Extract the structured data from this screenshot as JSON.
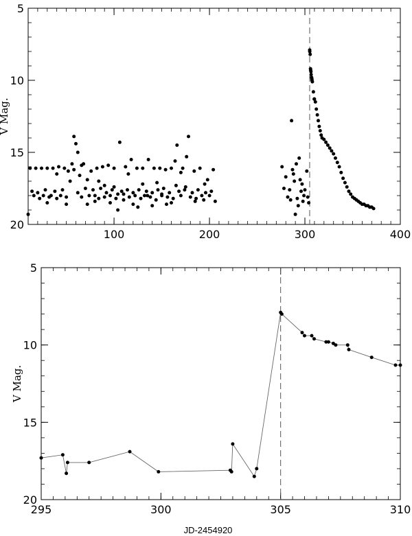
{
  "chart_data": [
    {
      "type": "scatter",
      "title": "",
      "xlabel": "",
      "ylabel": "V Mag.",
      "xlim": [
        10,
        400
      ],
      "ylim": [
        20,
        5
      ],
      "y_inverted": true,
      "x_ticks": [
        100,
        200,
        300,
        400
      ],
      "y_ticks": [
        5,
        10,
        15,
        20
      ],
      "vline": 305,
      "series": [
        {
          "points": [
            [
              10,
              19.3
            ],
            [
              12,
              16.1
            ],
            [
              14,
              17.7
            ],
            [
              16,
              18.0
            ],
            [
              18,
              16.1
            ],
            [
              20,
              17.8
            ],
            [
              22,
              18.2
            ],
            [
              24,
              16.1
            ],
            [
              26,
              18.0
            ],
            [
              28,
              17.6
            ],
            [
              30,
              16.1
            ],
            [
              32,
              18.1
            ],
            [
              34,
              18.0
            ],
            [
              36,
              16.1
            ],
            [
              38,
              17.7
            ],
            [
              40,
              18.2
            ],
            [
              42,
              16.0
            ],
            [
              44,
              18.0
            ],
            [
              46,
              17.6
            ],
            [
              48,
              16.1
            ],
            [
              50,
              18.1
            ],
            [
              52,
              16.3
            ],
            [
              54,
              17.0
            ],
            [
              56,
              15.8
            ],
            [
              58,
              16.2
            ],
            [
              60,
              14.4
            ],
            [
              62,
              17.8
            ],
            [
              64,
              16.6
            ],
            [
              66,
              18.1
            ],
            [
              68,
              15.8
            ],
            [
              70,
              17.5
            ],
            [
              72,
              16.9
            ],
            [
              74,
              18.0
            ],
            [
              76,
              16.3
            ],
            [
              78,
              17.6
            ],
            [
              80,
              18.0
            ],
            [
              82,
              16.1
            ],
            [
              84,
              18.2
            ],
            [
              86,
              17.5
            ],
            [
              88,
              16.0
            ],
            [
              90,
              18.1
            ],
            [
              92,
              17.8
            ],
            [
              94,
              15.9
            ],
            [
              96,
              18.0
            ],
            [
              98,
              17.6
            ],
            [
              100,
              16.1
            ],
            [
              102,
              18.2
            ],
            [
              104,
              17.9
            ],
            [
              106,
              14.3
            ],
            [
              108,
              17.7
            ],
            [
              110,
              18.3
            ],
            [
              112,
              16.0
            ],
            [
              114,
              17.6
            ],
            [
              116,
              18.1
            ],
            [
              118,
              15.5
            ],
            [
              120,
              17.8
            ],
            [
              122,
              18.0
            ],
            [
              124,
              16.1
            ],
            [
              126,
              17.6
            ],
            [
              128,
              18.2
            ],
            [
              130,
              16.1
            ],
            [
              132,
              18.0
            ],
            [
              134,
              17.7
            ],
            [
              136,
              15.5
            ],
            [
              138,
              18.1
            ],
            [
              140,
              17.8
            ],
            [
              142,
              16.1
            ],
            [
              144,
              18.3
            ],
            [
              146,
              17.6
            ],
            [
              148,
              16.1
            ],
            [
              150,
              18.0
            ],
            [
              152,
              17.5
            ],
            [
              154,
              16.2
            ],
            [
              156,
              18.1
            ],
            [
              158,
              17.8
            ],
            [
              160,
              16.1
            ],
            [
              162,
              18.2
            ],
            [
              164,
              15.6
            ],
            [
              166,
              14.5
            ],
            [
              168,
              17.7
            ],
            [
              170,
              18.0
            ],
            [
              172,
              16.1
            ],
            [
              174,
              17.6
            ],
            [
              176,
              15.3
            ],
            [
              178,
              13.9
            ],
            [
              180,
              18.1
            ],
            [
              182,
              17.8
            ],
            [
              184,
              16.3
            ],
            [
              186,
              18.2
            ],
            [
              188,
              17.6
            ],
            [
              190,
              16.1
            ],
            [
              192,
              18.0
            ],
            [
              194,
              18.3
            ],
            [
              196,
              17.8
            ],
            [
              198,
              16.9
            ],
            [
              200,
              18.0
            ],
            [
              202,
              17.7
            ],
            [
              204,
              16.2
            ],
            [
              206,
              18.4
            ],
            [
              58,
              13.9
            ],
            [
              62,
              15.0
            ],
            [
              66,
              15.9
            ],
            [
              100,
              17.4
            ],
            [
              110,
              17.9
            ],
            [
              120,
              18.6
            ],
            [
              130,
              17.2
            ],
            [
              140,
              18.7
            ],
            [
              150,
              17.9
            ],
            [
              160,
              18.5
            ],
            [
              170,
              16.4
            ],
            [
              40,
              16.5
            ],
            [
              30,
              18.5
            ],
            [
              50,
              18.6
            ],
            [
              80,
              18.4
            ],
            [
              90,
              17.3
            ],
            [
              115,
              16.5
            ],
            [
              125,
              18.8
            ],
            [
              135,
              18.0
            ],
            [
              145,
              17.1
            ],
            [
              155,
              18.6
            ],
            [
              165,
              17.3
            ],
            [
              175,
              17.4
            ],
            [
              185,
              18.4
            ],
            [
              195,
              17.2
            ],
            [
              72,
              18.6
            ],
            [
              84,
              17.0
            ],
            [
              96,
              18.5
            ],
            [
              104,
              19.0
            ],
            [
              276,
              16.0
            ],
            [
              278,
              17.5
            ],
            [
              280,
              16.7
            ],
            [
              282,
              18.1
            ],
            [
              284,
              17.6
            ],
            [
              286,
              12.8
            ],
            [
              288,
              16.5
            ],
            [
              290,
              19.3
            ],
            [
              292,
              18.2
            ],
            [
              294,
              15.4
            ],
            [
              296,
              17.7
            ],
            [
              298,
              18.4
            ],
            [
              300,
              17.6
            ],
            [
              302,
              16.3
            ],
            [
              303,
              18.1
            ],
            [
              304,
              18.5
            ],
            [
              285,
              18.3
            ],
            [
              287,
              16.2
            ],
            [
              289,
              17.0
            ],
            [
              291,
              15.8
            ],
            [
              293,
              18.7
            ],
            [
              295,
              16.9
            ],
            [
              297,
              17.2
            ],
            [
              299,
              18.0
            ]
          ]
        },
        {
          "points": [
            [
              305.0,
              7.9
            ],
            [
              305.1,
              8.0
            ],
            [
              305.5,
              8.2
            ],
            [
              305.9,
              9.2
            ],
            [
              306.0,
              9.3
            ],
            [
              306.3,
              9.4
            ],
            [
              306.5,
              9.6
            ],
            [
              307.0,
              9.8
            ],
            [
              307.3,
              9.9
            ],
            [
              307.5,
              10.0
            ],
            [
              307.8,
              10.1
            ],
            [
              308.9,
              10.8
            ],
            [
              309.8,
              11.3
            ],
            [
              310.0,
              11.3
            ],
            [
              311,
              11.5
            ],
            [
              312,
              12.0
            ],
            [
              313,
              12.4
            ],
            [
              314,
              12.8
            ],
            [
              315,
              13.2
            ],
            [
              316,
              13.5
            ],
            [
              317,
              13.8
            ],
            [
              318,
              14.0
            ],
            [
              320,
              14.1
            ],
            [
              322,
              14.3
            ],
            [
              324,
              14.5
            ],
            [
              326,
              14.7
            ],
            [
              328,
              14.9
            ],
            [
              330,
              15.1
            ],
            [
              332,
              15.4
            ],
            [
              334,
              15.7
            ],
            [
              336,
              16.0
            ],
            [
              338,
              16.4
            ],
            [
              340,
              16.8
            ],
            [
              342,
              17.1
            ],
            [
              344,
              17.4
            ],
            [
              346,
              17.7
            ],
            [
              348,
              17.9
            ],
            [
              350,
              18.1
            ],
            [
              352,
              18.2
            ],
            [
              354,
              18.3
            ],
            [
              356,
              18.4
            ],
            [
              358,
              18.5
            ],
            [
              360,
              18.6
            ],
            [
              362,
              18.6
            ],
            [
              364,
              18.7
            ],
            [
              366,
              18.7
            ],
            [
              368,
              18.8
            ],
            [
              370,
              18.8
            ],
            [
              372,
              18.9
            ]
          ]
        }
      ]
    },
    {
      "type": "line",
      "title": "",
      "xlabel": "JD-2454920",
      "ylabel": "V Mag.",
      "xlim": [
        295,
        310
      ],
      "ylim": [
        20,
        5
      ],
      "y_inverted": true,
      "x_ticks": [
        295,
        300,
        305,
        310
      ],
      "y_ticks": [
        5,
        10,
        15,
        20
      ],
      "vline": 305,
      "series": [
        {
          "points": [
            [
              295.0,
              17.3
            ],
            [
              295.9,
              17.1
            ],
            [
              296.05,
              18.3
            ],
            [
              296.1,
              17.6
            ],
            [
              297.0,
              17.6
            ],
            [
              298.7,
              16.9
            ],
            [
              299.9,
              18.2
            ],
            [
              302.9,
              18.1
            ],
            [
              302.95,
              18.2
            ],
            [
              303.0,
              16.4
            ],
            [
              303.9,
              18.5
            ],
            [
              304.0,
              18.0
            ],
            [
              305.0,
              7.9
            ],
            [
              305.05,
              8.0
            ],
            [
              305.9,
              9.2
            ],
            [
              306.0,
              9.4
            ],
            [
              306.3,
              9.4
            ],
            [
              306.4,
              9.6
            ],
            [
              306.9,
              9.8
            ],
            [
              307.0,
              9.8
            ],
            [
              307.2,
              9.9
            ],
            [
              307.3,
              10.0
            ],
            [
              307.8,
              10.0
            ],
            [
              307.85,
              10.3
            ],
            [
              308.8,
              10.8
            ],
            [
              309.8,
              11.3
            ],
            [
              310.0,
              11.3
            ]
          ]
        }
      ]
    }
  ]
}
